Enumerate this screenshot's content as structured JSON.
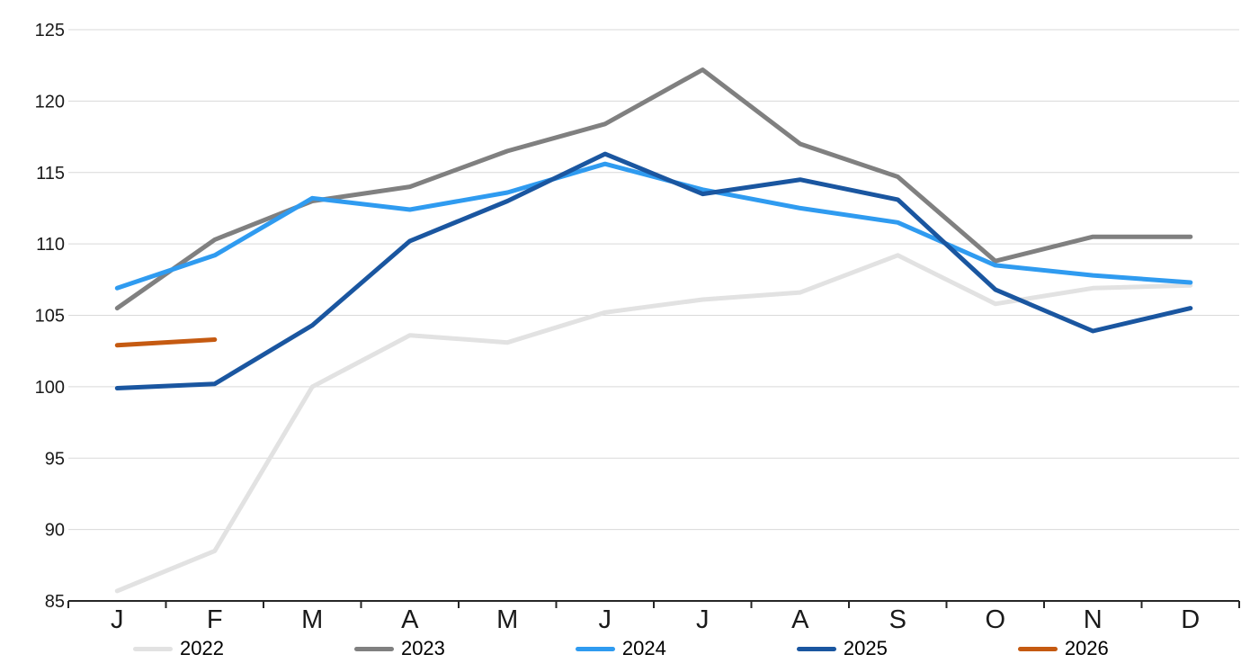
{
  "chart_data": {
    "type": "line",
    "title": "",
    "xlabel": "",
    "ylabel": "",
    "grid": true,
    "legend_position": "bottom",
    "gridline_color": "#d9d9d9",
    "axis_color": "#262626",
    "background_color": "#ffffff",
    "x_axis": {
      "categories": [
        "J",
        "F",
        "M",
        "A",
        "M",
        "J",
        "J",
        "A",
        "S",
        "O",
        "N",
        "D"
      ],
      "tick_count": 13
    },
    "y_axis": {
      "min": 85,
      "max": 125,
      "step": 5,
      "tick_labels": [
        "85",
        "90",
        "95",
        "100",
        "105",
        "110",
        "115",
        "120",
        "125"
      ]
    },
    "series": [
      {
        "name": "2022",
        "color": "#e2e2e2",
        "values": [
          85.7,
          88.5,
          100.0,
          103.6,
          103.1,
          105.2,
          106.1,
          106.6,
          109.2,
          105.8,
          106.9,
          107.1
        ]
      },
      {
        "name": "2023",
        "color": "#808080",
        "values": [
          105.5,
          110.3,
          113.0,
          114.0,
          116.5,
          118.4,
          122.2,
          117.0,
          114.7,
          108.8,
          110.5,
          110.5
        ]
      },
      {
        "name": "2024",
        "color": "#2f9bf0",
        "values": [
          106.9,
          109.2,
          113.2,
          112.4,
          113.6,
          115.6,
          113.8,
          112.5,
          111.5,
          108.5,
          107.8,
          107.3
        ]
      },
      {
        "name": "2025",
        "color": "#1a56a0",
        "values": [
          99.9,
          100.2,
          104.3,
          110.2,
          113.0,
          116.3,
          113.5,
          114.5,
          113.1,
          106.8,
          103.9,
          105.5
        ]
      },
      {
        "name": "2026",
        "color": "#c55a11",
        "values": [
          102.9,
          103.3
        ]
      }
    ]
  }
}
